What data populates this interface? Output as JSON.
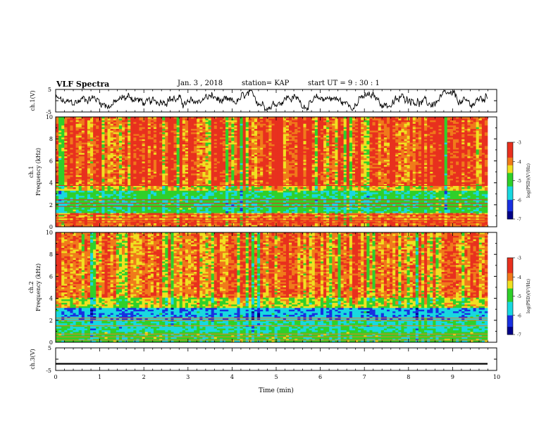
{
  "header": {
    "title": "VLF Spectra",
    "date": "Jan. 3 , 2018",
    "station": "station= KAP",
    "start": "start UT = 9 : 30 : 1"
  },
  "chart_data": [
    {
      "type": "line",
      "panel": "ch1-waveform",
      "ylabel": "ch.1(V)",
      "ylim": [
        -5,
        5
      ],
      "yticks": [
        "5",
        "-5"
      ],
      "xlim": [
        0,
        10
      ],
      "series": [
        {
          "values": "noisy signal oscillating roughly between -4 and 4 V over 0–9.8 min"
        }
      ]
    },
    {
      "type": "heatmap",
      "panel": "ch1-spectrogram",
      "ylabel": "ch.1 Frequency (kHz)",
      "ylim": [
        0,
        10
      ],
      "yticks": [
        "0",
        "2",
        "4",
        "6",
        "8",
        "10"
      ],
      "xlim": [
        0,
        10
      ],
      "colorbar": {
        "label": "log(PSD)(V²/Hz)",
        "range": [
          -7,
          -3
        ],
        "ticks": [
          "-3",
          "-4",
          "-5",
          "-6",
          "-7"
        ]
      },
      "bands": [
        {
          "from_khz": 0,
          "to_khz": 0.7,
          "level": -3.8
        },
        {
          "from_khz": 0.7,
          "to_khz": 1.3,
          "level": -4.0
        },
        {
          "from_khz": 1.3,
          "to_khz": 3.3,
          "level": -5.1
        },
        {
          "from_khz": 3.3,
          "to_khz": 3.8,
          "level": -4.3
        },
        {
          "from_khz": 3.8,
          "to_khz": 10,
          "level": -3.7
        }
      ]
    },
    {
      "type": "heatmap",
      "panel": "ch2-spectrogram",
      "ylabel": "ch.2 Frequency (kHz)",
      "ylim": [
        0,
        10
      ],
      "yticks": [
        "0",
        "2",
        "4",
        "6",
        "8",
        "10"
      ],
      "xlim": [
        0,
        10
      ],
      "colorbar": {
        "label": "log(PSD)(V²/Hz)",
        "range": [
          -7,
          -3
        ],
        "ticks": [
          "-3",
          "-4",
          "-5",
          "-6",
          "-7"
        ]
      },
      "bands": [
        {
          "from_khz": 0,
          "to_khz": 1.0,
          "level": -5.0
        },
        {
          "from_khz": 1.0,
          "to_khz": 2.1,
          "level": -5.3
        },
        {
          "from_khz": 2.1,
          "to_khz": 3.1,
          "level": -5.8
        },
        {
          "from_khz": 3.1,
          "to_khz": 4.0,
          "level": -4.5
        },
        {
          "from_khz": 4.0,
          "to_khz": 10,
          "level": -3.9
        }
      ]
    },
    {
      "type": "line",
      "panel": "ch3-waveform",
      "ylabel": "ch.3(V)",
      "ylim": [
        -5,
        5
      ],
      "yticks": [
        "5",
        "-5"
      ],
      "xlim": [
        0,
        10
      ],
      "series": [
        {
          "values": "flat signal near -2 V over 0–9.8 min"
        }
      ]
    }
  ],
  "xaxis": {
    "label": "Time (min)",
    "ticks": [
      "0",
      "1",
      "2",
      "3",
      "4",
      "5",
      "6",
      "7",
      "8",
      "9",
      "10"
    ]
  },
  "colors": {
    "red": "#e8301e",
    "orange": "#f07a1a",
    "yellow": "#f0e020",
    "green": "#2fd02a",
    "cyan": "#18d8e0",
    "blue": "#1830e0",
    "navy": "#000088"
  }
}
